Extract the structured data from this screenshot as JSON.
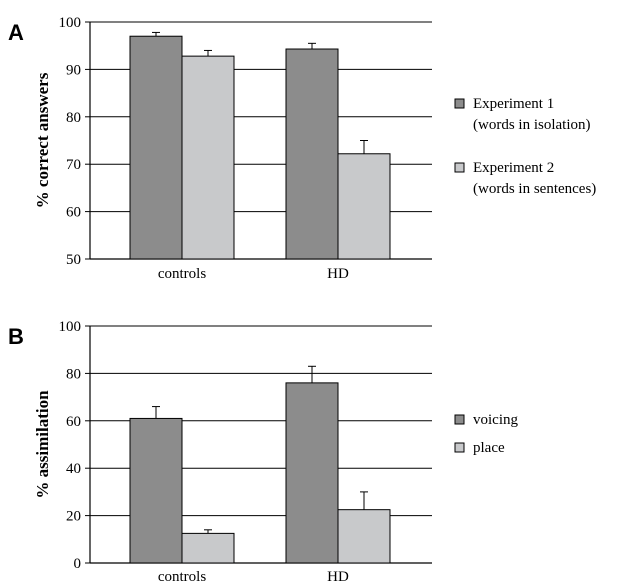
{
  "chart_data": [
    {
      "type": "bar",
      "panel_label": "A",
      "ylabel": "% correct answers",
      "categories": [
        "controls",
        "HD"
      ],
      "ylim": [
        50,
        100
      ],
      "yticks": [
        50,
        60,
        70,
        80,
        90,
        100
      ],
      "grid": true,
      "legend_position": "right",
      "series": [
        {
          "name": "Experiment 1",
          "name_line2": "(words in isolation)",
          "color": "#8c8c8c",
          "values": [
            97,
            94.3
          ],
          "errors": [
            0.8,
            1.2
          ]
        },
        {
          "name": "Experiment 2",
          "name_line2": "(words in sentences)",
          "color": "#c8c9cb",
          "values": [
            92.8,
            72.2
          ],
          "errors": [
            1.2,
            2.8
          ]
        }
      ]
    },
    {
      "type": "bar",
      "panel_label": "B",
      "ylabel": "% assimilation",
      "categories": [
        "controls",
        "HD"
      ],
      "ylim": [
        0,
        100
      ],
      "yticks": [
        0,
        20,
        40,
        60,
        80,
        100
      ],
      "grid": true,
      "legend_position": "right",
      "series": [
        {
          "name": "voicing",
          "name_line2": "",
          "color": "#8c8c8c",
          "values": [
            61,
            76
          ],
          "errors": [
            5,
            7
          ]
        },
        {
          "name": "place",
          "name_line2": "",
          "color": "#c8c9cb",
          "values": [
            12.5,
            22.5
          ],
          "errors": [
            1.5,
            7.5
          ]
        }
      ]
    }
  ]
}
